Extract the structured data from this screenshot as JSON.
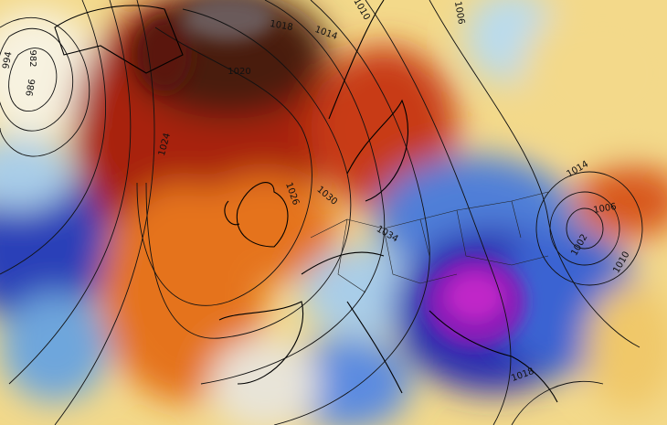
{
  "map": {
    "isobar_labels": [
      "994",
      "982",
      "986",
      "1010",
      "1014",
      "1018",
      "1020",
      "1024",
      "1026",
      "1030",
      "1034",
      "1006",
      "1014",
      "1006",
      "1002",
      "1010",
      "1018"
    ]
  }
}
